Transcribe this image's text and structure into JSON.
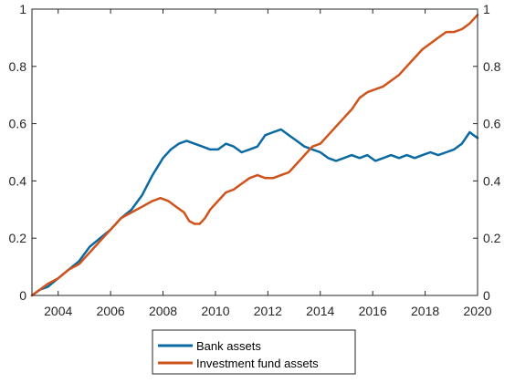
{
  "chart_data": {
    "type": "line",
    "title": "",
    "xlabel": "",
    "ylabel": "",
    "xlim": [
      2003,
      2020
    ],
    "ylim": [
      0,
      1
    ],
    "grid": false,
    "legend_position": "bottom-center-outside",
    "x_ticks": [
      2004,
      2006,
      2008,
      2010,
      2012,
      2014,
      2016,
      2018,
      2020
    ],
    "x_tick_labels": [
      "2004",
      "2006",
      "2008",
      "2010",
      "2012",
      "2014",
      "2016",
      "2018",
      "2020"
    ],
    "y_ticks": [
      0,
      0.2,
      0.4,
      0.6,
      0.8,
      1
    ],
    "y_tick_labels": [
      "0",
      "0.2",
      "0.4",
      "0.6",
      "0.8",
      "1"
    ],
    "series": [
      {
        "name": "Bank assets",
        "color": "#0a6aa1",
        "x": [
          2003.0,
          2003.3,
          2003.6,
          2004.0,
          2004.4,
          2004.8,
          2005.2,
          2005.6,
          2006.0,
          2006.4,
          2006.8,
          2007.2,
          2007.6,
          2008.0,
          2008.3,
          2008.6,
          2008.9,
          2009.2,
          2009.5,
          2009.8,
          2010.1,
          2010.4,
          2010.7,
          2011.0,
          2011.3,
          2011.6,
          2011.9,
          2012.2,
          2012.5,
          2012.8,
          2013.1,
          2013.4,
          2013.7,
          2014.0,
          2014.3,
          2014.6,
          2014.9,
          2015.2,
          2015.5,
          2015.8,
          2016.1,
          2016.4,
          2016.7,
          2017.0,
          2017.3,
          2017.6,
          2017.9,
          2018.2,
          2018.5,
          2018.8,
          2019.1,
          2019.4,
          2019.7,
          2019.85,
          2020.0
        ],
        "y": [
          0.0,
          0.02,
          0.03,
          0.06,
          0.09,
          0.12,
          0.17,
          0.2,
          0.23,
          0.27,
          0.3,
          0.35,
          0.42,
          0.48,
          0.51,
          0.53,
          0.54,
          0.53,
          0.52,
          0.51,
          0.51,
          0.53,
          0.52,
          0.5,
          0.51,
          0.52,
          0.56,
          0.57,
          0.58,
          0.56,
          0.54,
          0.52,
          0.51,
          0.5,
          0.48,
          0.47,
          0.48,
          0.49,
          0.48,
          0.49,
          0.47,
          0.48,
          0.49,
          0.48,
          0.49,
          0.48,
          0.49,
          0.5,
          0.49,
          0.5,
          0.51,
          0.53,
          0.57,
          0.56,
          0.55
        ]
      },
      {
        "name": "Investment fund assets",
        "color": "#d0531c",
        "x": [
          2003.0,
          2003.3,
          2003.6,
          2004.0,
          2004.4,
          2004.8,
          2005.2,
          2005.6,
          2006.0,
          2006.4,
          2006.8,
          2007.2,
          2007.6,
          2007.9,
          2008.2,
          2008.5,
          2008.8,
          2009.0,
          2009.2,
          2009.4,
          2009.6,
          2009.8,
          2010.1,
          2010.4,
          2010.7,
          2011.0,
          2011.3,
          2011.6,
          2011.9,
          2012.2,
          2012.5,
          2012.8,
          2013.1,
          2013.4,
          2013.7,
          2014.0,
          2014.3,
          2014.6,
          2014.9,
          2015.2,
          2015.5,
          2015.8,
          2016.1,
          2016.4,
          2016.7,
          2017.0,
          2017.3,
          2017.6,
          2017.9,
          2018.2,
          2018.5,
          2018.8,
          2019.1,
          2019.4,
          2019.7,
          2020.0
        ],
        "y": [
          0.0,
          0.02,
          0.04,
          0.06,
          0.09,
          0.11,
          0.15,
          0.19,
          0.23,
          0.27,
          0.29,
          0.31,
          0.33,
          0.34,
          0.33,
          0.31,
          0.29,
          0.26,
          0.25,
          0.25,
          0.27,
          0.3,
          0.33,
          0.36,
          0.37,
          0.39,
          0.41,
          0.42,
          0.41,
          0.41,
          0.42,
          0.43,
          0.46,
          0.49,
          0.52,
          0.53,
          0.56,
          0.59,
          0.62,
          0.65,
          0.69,
          0.71,
          0.72,
          0.73,
          0.75,
          0.77,
          0.8,
          0.83,
          0.86,
          0.88,
          0.9,
          0.92,
          0.92,
          0.93,
          0.95,
          0.98
        ]
      }
    ]
  }
}
